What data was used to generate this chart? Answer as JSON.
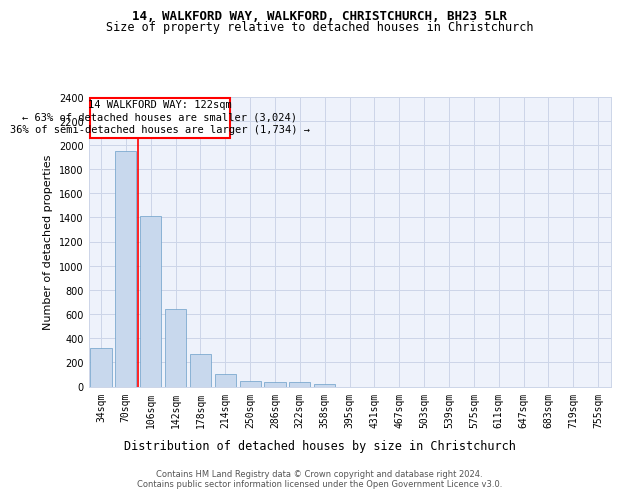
{
  "title_line1": "14, WALKFORD WAY, WALKFORD, CHRISTCHURCH, BH23 5LR",
  "title_line2": "Size of property relative to detached houses in Christchurch",
  "xlabel": "Distribution of detached houses by size in Christchurch",
  "ylabel": "Number of detached properties",
  "bar_color": "#c8d8ed",
  "bar_edge_color": "#6a9fc8",
  "categories": [
    "34sqm",
    "70sqm",
    "106sqm",
    "142sqm",
    "178sqm",
    "214sqm",
    "250sqm",
    "286sqm",
    "322sqm",
    "358sqm",
    "395sqm",
    "431sqm",
    "467sqm",
    "503sqm",
    "539sqm",
    "575sqm",
    "611sqm",
    "647sqm",
    "683sqm",
    "719sqm",
    "755sqm"
  ],
  "values": [
    320,
    1950,
    1410,
    645,
    270,
    100,
    48,
    40,
    38,
    22,
    0,
    0,
    0,
    0,
    0,
    0,
    0,
    0,
    0,
    0,
    0
  ],
  "ylim": [
    0,
    2400
  ],
  "yticks": [
    0,
    200,
    400,
    600,
    800,
    1000,
    1200,
    1400,
    1600,
    1800,
    2000,
    2200,
    2400
  ],
  "annotation_title": "14 WALKFORD WAY: 122sqm",
  "annotation_line2": "← 63% of detached houses are smaller (3,024)",
  "annotation_line3": "36% of semi-detached houses are larger (1,734) →",
  "red_line_x": 1.5,
  "footer_line1": "Contains HM Land Registry data © Crown copyright and database right 2024.",
  "footer_line2": "Contains public sector information licensed under the Open Government Licence v3.0.",
  "bg_color": "#eef2fb",
  "grid_color": "#ccd5e8",
  "title_fontsize": 9,
  "subtitle_fontsize": 8.5,
  "tick_fontsize": 7,
  "ylabel_fontsize": 8,
  "xlabel_fontsize": 8.5,
  "footer_fontsize": 6,
  "ann_fontsize": 7.5
}
